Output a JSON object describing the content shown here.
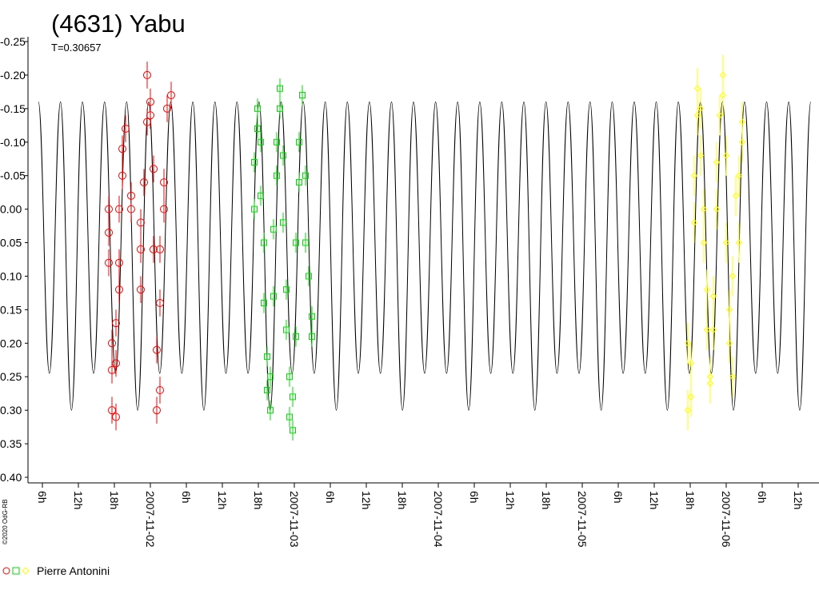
{
  "chart_data": {
    "type": "lightcurve",
    "title": "(4631) Yabu",
    "subtitle": "T=0.30657",
    "copyright": "©2020 OdG-RB",
    "observer": "Pierre Antonini",
    "y_inverted": true,
    "ylim": [
      -0.25,
      0.4
    ],
    "yticks": [
      {
        "value": -0.25,
        "label": "-0.25"
      },
      {
        "value": -0.2,
        "label": "-0.20"
      },
      {
        "value": -0.15,
        "label": "-0.15"
      },
      {
        "value": -0.1,
        "label": "-0.10"
      },
      {
        "value": -0.05,
        "label": "-0.05"
      },
      {
        "value": 0,
        "label": "0.00"
      },
      {
        "value": 0.05,
        "label": "0.05"
      },
      {
        "value": 0.1,
        "label": "0.10"
      },
      {
        "value": 0.15,
        "label": "0.15"
      },
      {
        "value": 0.2,
        "label": "0.20"
      },
      {
        "value": 0.25,
        "label": "0.25"
      },
      {
        "value": 0.3,
        "label": "0.30"
      },
      {
        "value": 0.35,
        "label": "0.35"
      },
      {
        "value": 0.4,
        "label": "0.40"
      }
    ],
    "xlim": [
      "2007-11-01T03:36",
      "2007-11-06T15:28"
    ],
    "xticks": [
      {
        "value": "2007-11-01T06:00",
        "label": "6h"
      },
      {
        "value": "2007-11-01T12:00",
        "label": "12h"
      },
      {
        "value": "2007-11-01T18:00",
        "label": "18h"
      },
      {
        "value": "2007-11-02T00:00",
        "label": "2007-11-02"
      },
      {
        "value": "2007-11-02T06:00",
        "label": "6h"
      },
      {
        "value": "2007-11-02T12:00",
        "label": "12h"
      },
      {
        "value": "2007-11-02T18:00",
        "label": "18h"
      },
      {
        "value": "2007-11-03T00:00",
        "label": "2007-11-03"
      },
      {
        "value": "2007-11-03T06:00",
        "label": "6h"
      },
      {
        "value": "2007-11-03T12:00",
        "label": "12h"
      },
      {
        "value": "2007-11-03T18:00",
        "label": "18h"
      },
      {
        "value": "2007-11-04T00:00",
        "label": "2007-11-04"
      },
      {
        "value": "2007-11-04T06:00",
        "label": "6h"
      },
      {
        "value": "2007-11-04T12:00",
        "label": "12h"
      },
      {
        "value": "2007-11-04T18:00",
        "label": "18h"
      },
      {
        "value": "2007-11-05T00:00",
        "label": "2007-11-05"
      },
      {
        "value": "2007-11-05T06:00",
        "label": "6h"
      },
      {
        "value": "2007-11-05T12:00",
        "label": "12h"
      },
      {
        "value": "2007-11-05T18:00",
        "label": "18h"
      },
      {
        "value": "2007-11-06T00:00",
        "label": "2007-11-06"
      },
      {
        "value": "2007-11-06T06:00",
        "label": "6h"
      },
      {
        "value": "2007-11-06T12:00",
        "label": "12h"
      }
    ],
    "model": {
      "color": "#000000",
      "x": [
        "2007-11-01T05:20",
        "2007-11-01T07:10",
        "2007-11-01T09:01",
        "2007-11-01T10:51",
        "2007-11-01T12:41",
        "2007-11-01T14:32",
        "2007-11-01T16:22",
        "2007-11-01T18:12",
        "2007-11-01T20:03",
        "2007-11-01T21:53",
        "2007-11-01T23:43",
        "2007-11-02T01:34",
        "2007-11-02T03:24",
        "2007-11-02T05:15",
        "2007-11-02T07:05",
        "2007-11-02T08:55",
        "2007-11-02T10:46",
        "2007-11-02T12:36",
        "2007-11-02T14:26",
        "2007-11-02T16:17",
        "2007-11-02T18:07",
        "2007-11-02T19:58",
        "2007-11-02T21:48",
        "2007-11-02T23:38",
        "2007-11-03T01:29",
        "2007-11-03T03:19",
        "2007-11-03T05:09",
        "2007-11-03T07:00",
        "2007-11-03T08:50",
        "2007-11-03T10:40",
        "2007-11-03T12:31",
        "2007-11-03T14:21",
        "2007-11-03T16:12",
        "2007-11-03T18:02",
        "2007-11-03T19:52",
        "2007-11-03T21:43",
        "2007-11-03T23:33",
        "2007-11-04T01:23",
        "2007-11-04T03:14",
        "2007-11-04T05:04",
        "2007-11-04T06:55",
        "2007-11-04T08:45",
        "2007-11-04T10:35",
        "2007-11-04T12:26",
        "2007-11-04T14:16",
        "2007-11-04T16:06",
        "2007-11-04T17:57",
        "2007-11-04T19:47",
        "2007-11-04T21:38",
        "2007-11-04T23:28",
        "2007-11-05T01:18",
        "2007-11-05T03:09",
        "2007-11-05T04:59",
        "2007-11-05T06:49",
        "2007-11-05T08:40",
        "2007-11-05T10:30",
        "2007-11-05T12:20",
        "2007-11-05T14:11",
        "2007-11-05T16:01",
        "2007-11-05T17:52",
        "2007-11-05T19:42",
        "2007-11-05T21:32",
        "2007-11-05T23:23",
        "2007-11-06T01:13",
        "2007-11-06T03:03",
        "2007-11-06T04:54",
        "2007-11-06T06:44",
        "2007-11-06T08:35",
        "2007-11-06T10:25",
        "2007-11-06T12:15",
        "2007-11-06T14:06"
      ],
      "values": [
        -0.16,
        0.245,
        -0.16,
        0.3,
        -0.16,
        0.245,
        -0.16,
        0.245,
        -0.16,
        0.3,
        -0.16,
        0.245,
        -0.16,
        0.245,
        -0.16,
        0.3,
        -0.16,
        0.245,
        -0.16,
        0.245,
        -0.16,
        0.3,
        -0.16,
        0.245,
        -0.16,
        0.245,
        -0.16,
        0.3,
        -0.16,
        0.245,
        -0.16,
        0.245,
        -0.16,
        0.3,
        -0.16,
        0.245,
        -0.16,
        0.245,
        -0.16,
        0.3,
        -0.16,
        0.245,
        -0.16,
        0.245,
        -0.16,
        0.3,
        -0.16,
        0.245,
        -0.16,
        0.245,
        -0.16,
        0.3,
        -0.16,
        0.245,
        -0.16,
        0.245,
        -0.16,
        0.3,
        -0.16,
        0.245,
        -0.16,
        0.245,
        -0.16,
        0.3,
        -0.16,
        0.245,
        -0.16,
        0.245,
        -0.16,
        0.3,
        -0.16
      ]
    },
    "series": [
      {
        "color": "#ff0000",
        "marker": "circle",
        "error": 0.02,
        "x": [
          "2007-11-01T17:04",
          "2007-11-01T17:04",
          "2007-11-01T17:04",
          "2007-11-01T17:36",
          "2007-11-01T17:36",
          "2007-11-01T17:36",
          "2007-11-01T18:16",
          "2007-11-01T18:16",
          "2007-11-01T18:16",
          "2007-11-01T18:48",
          "2007-11-01T18:48",
          "2007-11-01T18:48",
          "2007-11-01T19:20",
          "2007-11-01T19:20",
          "2007-11-01T19:52",
          "2007-11-01T20:48",
          "2007-11-01T20:48",
          "2007-11-01T22:24",
          "2007-11-01T22:24",
          "2007-11-01T22:24",
          "2007-11-01T22:56",
          "2007-11-01T23:28",
          "2007-11-01T23:28",
          "2007-11-02T00:00",
          "2007-11-02T00:00",
          "2007-11-02T00:32",
          "2007-11-02T00:32",
          "2007-11-02T01:04",
          "2007-11-02T01:04",
          "2007-11-02T01:36",
          "2007-11-02T01:36",
          "2007-11-02T01:36",
          "2007-11-02T02:16",
          "2007-11-02T02:16",
          "2007-11-02T02:48",
          "2007-11-02T03:28"
        ],
        "values": [
          0.0,
          0.035,
          0.08,
          0.2,
          0.24,
          0.3,
          0.31,
          0.23,
          0.17,
          0.12,
          0.08,
          0.0,
          -0.05,
          -0.09,
          -0.12,
          -0.02,
          0.0,
          0.12,
          0.06,
          0.02,
          -0.04,
          -0.2,
          -0.13,
          -0.14,
          -0.16,
          -0.06,
          0.06,
          0.21,
          0.3,
          0.27,
          0.14,
          0.06,
          0.0,
          -0.04,
          -0.15,
          -0.17
        ]
      },
      {
        "color": "#00dd00",
        "marker": "square",
        "error": 0.015,
        "x": [
          "2007-11-02T17:20",
          "2007-11-02T17:20",
          "2007-11-02T17:52",
          "2007-11-02T17:52",
          "2007-11-02T18:24",
          "2007-11-02T18:24",
          "2007-11-02T18:56",
          "2007-11-02T18:56",
          "2007-11-02T19:28",
          "2007-11-02T19:28",
          "2007-11-02T20:00",
          "2007-11-02T20:00",
          "2007-11-02T20:32",
          "2007-11-02T20:32",
          "2007-11-02T21:04",
          "2007-11-02T21:04",
          "2007-11-02T21:36",
          "2007-11-02T21:36",
          "2007-11-02T22:08",
          "2007-11-02T22:08",
          "2007-11-02T22:40",
          "2007-11-02T22:40",
          "2007-11-02T23:12",
          "2007-11-02T23:12",
          "2007-11-02T23:44",
          "2007-11-02T23:44",
          "2007-11-03T00:16",
          "2007-11-03T00:16",
          "2007-11-03T00:48",
          "2007-11-03T00:48",
          "2007-11-03T01:20",
          "2007-11-03T01:52",
          "2007-11-03T01:52",
          "2007-11-03T02:24",
          "2007-11-03T02:56",
          "2007-11-03T02:56"
        ],
        "values": [
          0.0,
          -0.07,
          -0.15,
          -0.12,
          -0.1,
          -0.02,
          0.05,
          0.14,
          0.22,
          0.27,
          0.3,
          0.25,
          0.13,
          0.03,
          -0.05,
          -0.1,
          -0.18,
          -0.15,
          -0.08,
          0.02,
          0.12,
          0.18,
          0.25,
          0.31,
          0.33,
          0.28,
          0.19,
          0.05,
          -0.04,
          -0.1,
          -0.17,
          -0.05,
          0.05,
          0.1,
          0.16,
          0.19
        ]
      },
      {
        "color": "#ffff00",
        "marker": "diamond",
        "error": 0.03,
        "x": [
          "2007-11-05T17:36",
          "2007-11-05T17:36",
          "2007-11-05T18:08",
          "2007-11-05T18:08",
          "2007-11-05T18:40",
          "2007-11-05T18:40",
          "2007-11-05T19:12",
          "2007-11-05T19:12",
          "2007-11-05T19:44",
          "2007-11-05T19:44",
          "2007-11-05T20:16",
          "2007-11-05T20:16",
          "2007-11-05T20:48",
          "2007-11-05T20:48",
          "2007-11-05T21:20",
          "2007-11-05T21:20",
          "2007-11-05T21:52",
          "2007-11-05T21:52",
          "2007-11-05T22:24",
          "2007-11-05T22:24",
          "2007-11-05T22:56",
          "2007-11-05T23:28",
          "2007-11-05T23:28",
          "2007-11-06T00:00",
          "2007-11-06T00:00",
          "2007-11-06T00:32",
          "2007-11-06T00:32",
          "2007-11-06T01:04",
          "2007-11-06T01:04",
          "2007-11-06T01:36",
          "2007-11-06T02:08",
          "2007-11-06T02:08",
          "2007-11-06T02:40",
          "2007-11-06T02:40"
        ],
        "values": [
          0.2,
          0.3,
          0.28,
          0.23,
          0.02,
          -0.05,
          -0.14,
          -0.18,
          -0.15,
          -0.08,
          0.0,
          0.05,
          0.12,
          0.18,
          0.25,
          0.26,
          0.18,
          0.13,
          0.0,
          -0.07,
          -0.14,
          -0.2,
          -0.17,
          -0.08,
          0.05,
          0.15,
          0.2,
          0.25,
          0.1,
          -0.02,
          0.05,
          -0.05,
          -0.1,
          -0.13
        ]
      }
    ]
  }
}
